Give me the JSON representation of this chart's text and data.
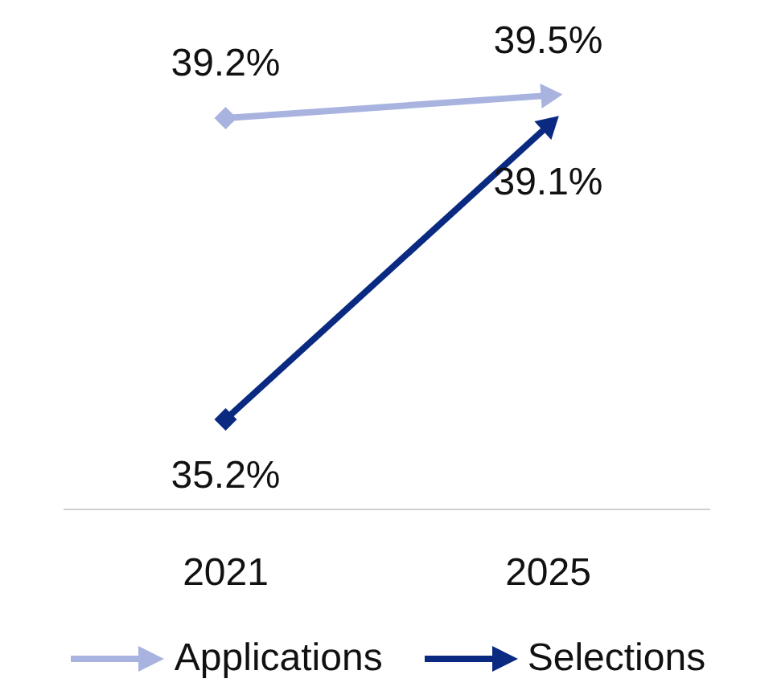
{
  "chart_data": {
    "type": "line",
    "categories": [
      "2021",
      "2025"
    ],
    "series": [
      {
        "name": "Applications",
        "color": "#a8b3e0",
        "values": [
          39.2,
          39.5
        ],
        "value_labels": [
          "39.2%",
          "39.5%"
        ]
      },
      {
        "name": "Selections",
        "color": "#0a2a82",
        "values": [
          35.2,
          39.1
        ],
        "value_labels": [
          "35.2%",
          "39.1%"
        ]
      }
    ],
    "tick_labels": "x",
    "marker": "diamond",
    "line_style": "solid",
    "legend": "bottom",
    "grid": false
  }
}
